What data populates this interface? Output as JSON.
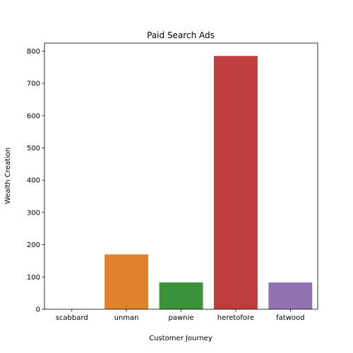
{
  "chart_data": {
    "type": "bar",
    "title": "Paid Search Ads",
    "xlabel": "Customer Journey",
    "ylabel": "Wealth Creation",
    "categories": [
      "scabbard",
      "unman",
      "pawnie",
      "heretofore",
      "fatwood"
    ],
    "values": [
      0,
      170,
      83,
      785,
      83
    ],
    "colors": [
      "#3a75af",
      "#e1812c",
      "#3a923a",
      "#c03d3e",
      "#9372b2"
    ],
    "ylim": [
      0,
      825
    ],
    "yticks": [
      0,
      100,
      200,
      300,
      400,
      500,
      600,
      700,
      800
    ],
    "grid": false,
    "legend": "none"
  }
}
